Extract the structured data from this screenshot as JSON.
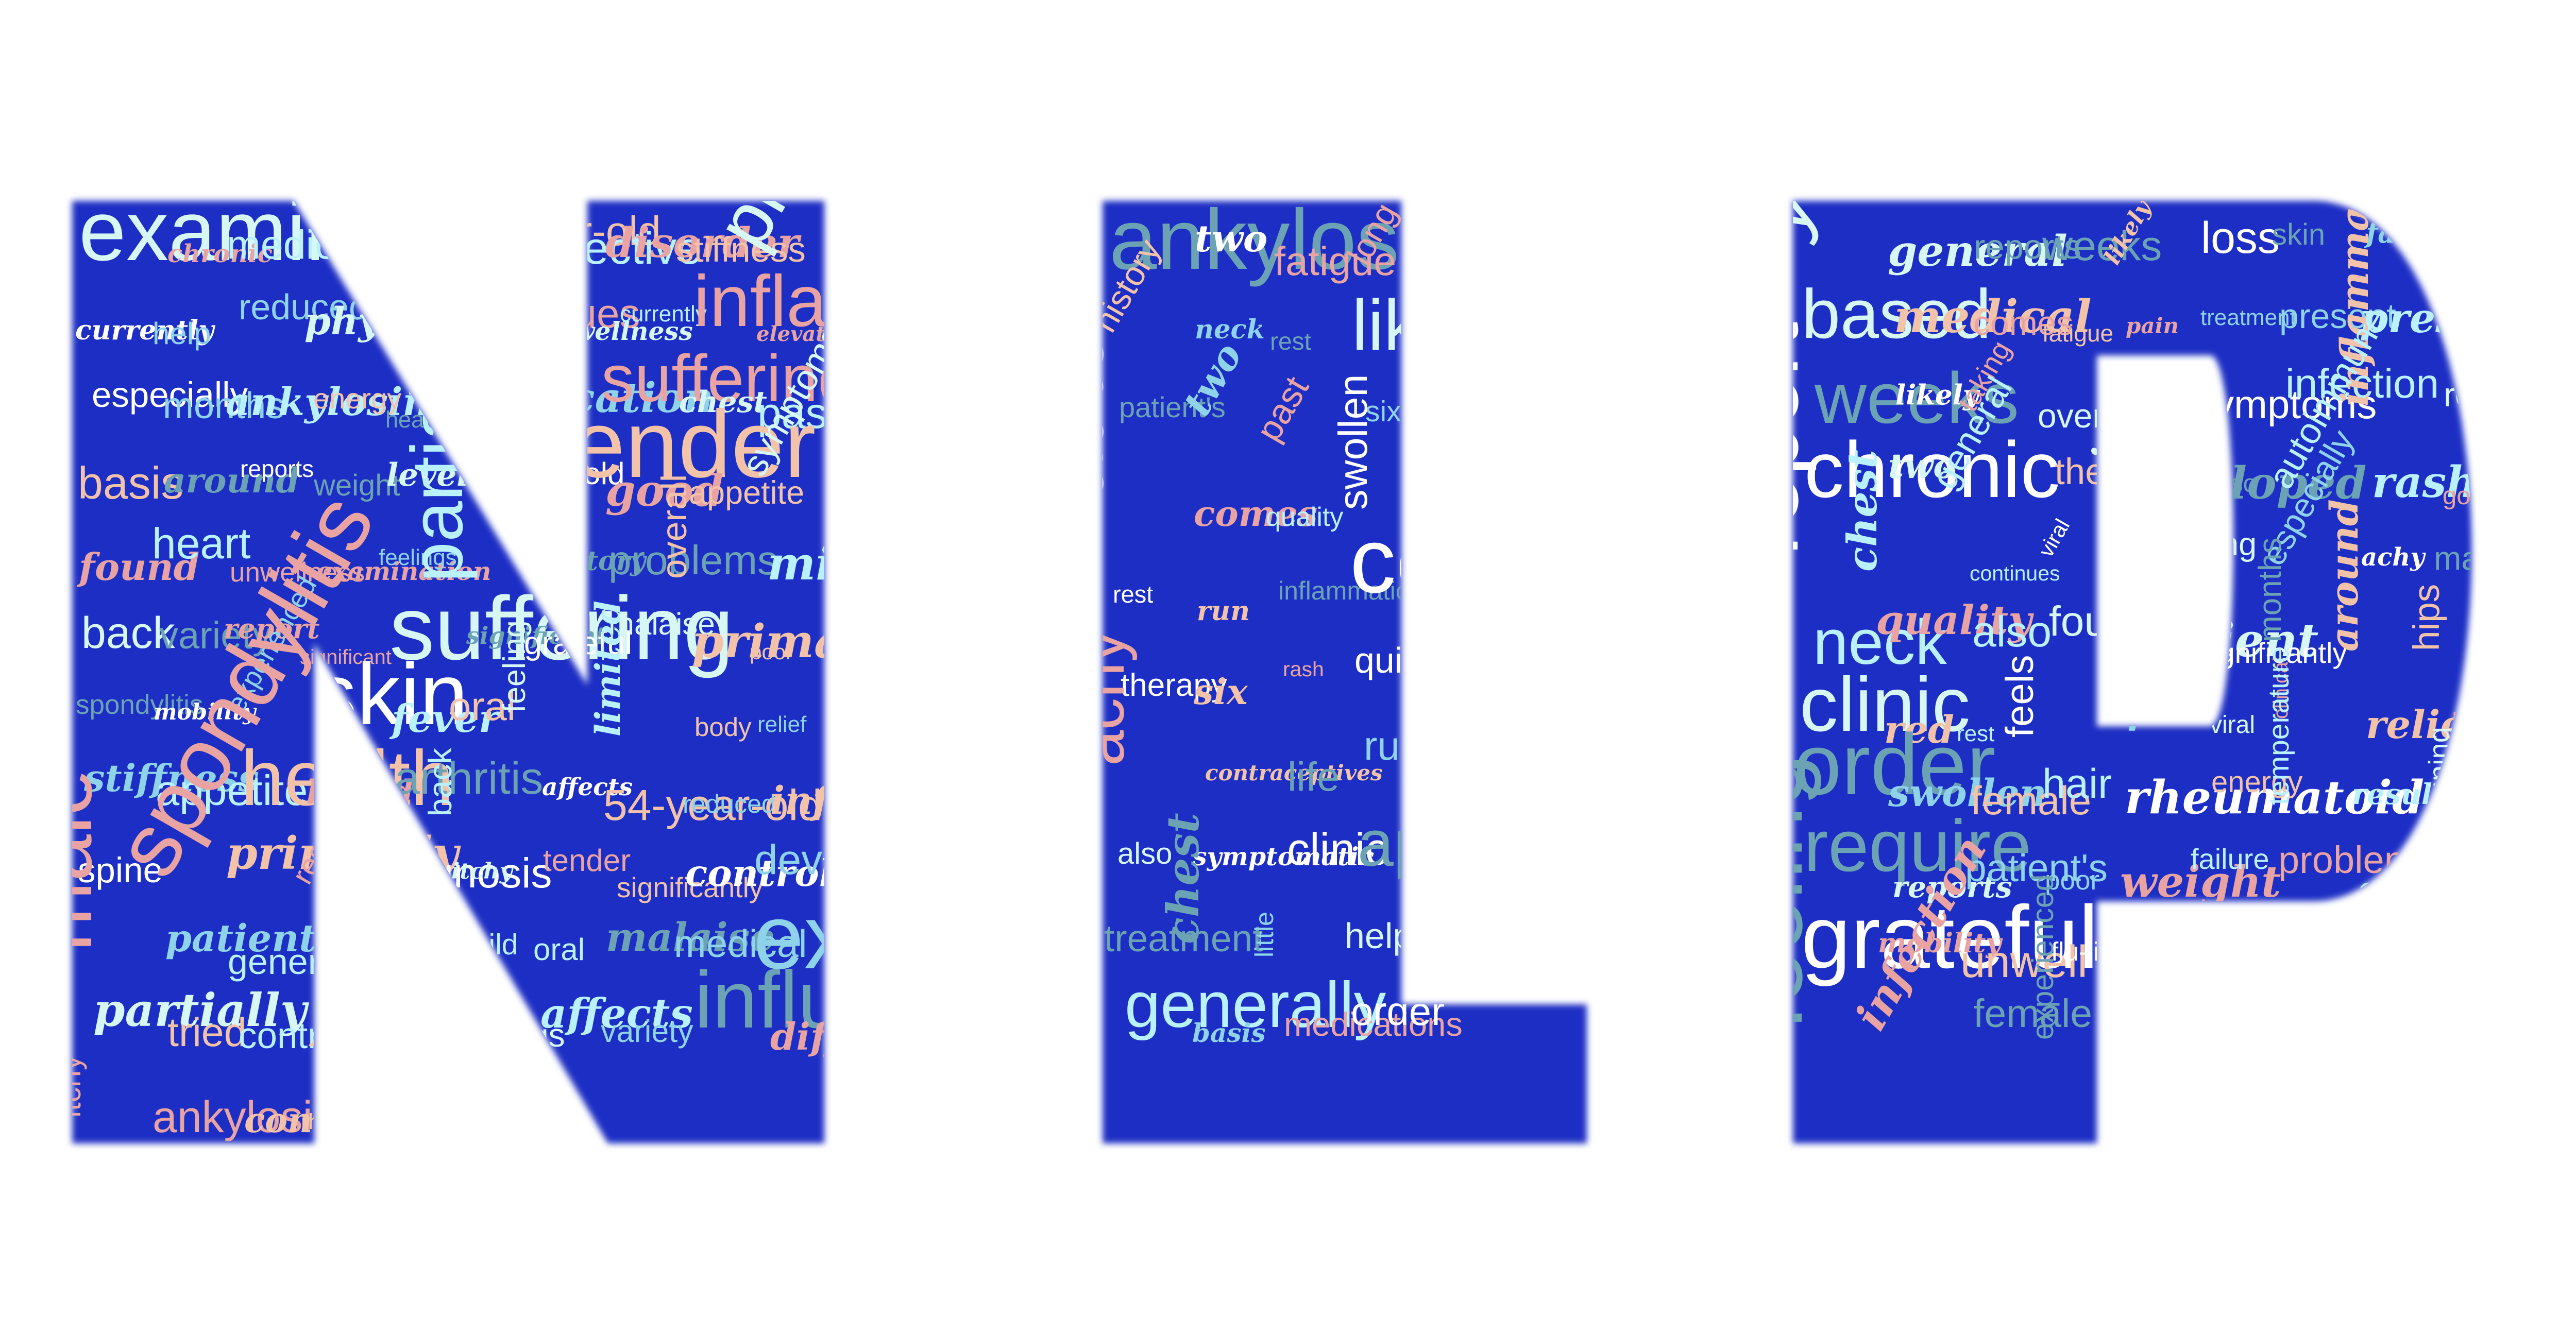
{
  "palette": {
    "background": "#ffffff",
    "letter_fill": "#1a2fc4",
    "word_colors": [
      "#ffffff",
      "#b9f1ff",
      "#f3c3a9",
      "#8fd3ea",
      "#6ca3b4",
      "#e9a3a3",
      "#d7f7f5"
    ]
  },
  "letters": [
    {
      "name": "N",
      "words": [
        "examination",
        "chronic",
        "medications",
        "health",
        "history",
        "38-year-old",
        "effective",
        "disorder",
        "stiffness",
        "physical",
        "currently",
        "help",
        "reduced",
        "physical",
        "patient",
        "continues",
        "unwellness",
        "currently",
        "inflammatory",
        "elevated",
        "especially",
        "months",
        "ankylosing",
        "energy",
        "healthy",
        "medication",
        "symptoms",
        "suffering",
        "chest",
        "past",
        "basis",
        "around",
        "reports",
        "weight",
        "levels",
        "54-year-old",
        "tender",
        "good",
        "appetite",
        "symptoms",
        "found",
        "heart",
        "unwellness",
        "examination",
        "feelings",
        "partially",
        "history",
        "problems",
        "overall",
        "mild",
        "back",
        "variety",
        "report",
        "significant",
        "suffering",
        "significant",
        "grateful",
        "malaise",
        "primarily",
        "poor",
        "spondylitis",
        "mobility",
        "experienced",
        "skin",
        "fever",
        "oral",
        "feeling",
        "limited",
        "body",
        "relief",
        "stiffness",
        "appetite",
        "health",
        "based",
        "arthritis",
        "back",
        "affects",
        "54-year-old",
        "reduced",
        "inflammation",
        "spine",
        "spondylitis",
        "primarily",
        "result",
        "diagnosis",
        "itchy",
        "tender",
        "significantly",
        "control",
        "developed",
        "male",
        "patient",
        "generally",
        "gain",
        "feels",
        "mild",
        "oral",
        "malaise",
        "medical",
        "exercise",
        "partially",
        "tried",
        "contraceptives",
        "fever",
        "hair",
        "feelings",
        "affects",
        "variety",
        "influenza",
        "diffuse",
        "itchy",
        "ankylosing",
        "control",
        "rheumatoid"
      ]
    },
    {
      "name": "I",
      "words": [
        "ankylosing",
        "two",
        "fatigue",
        "long",
        "temperature",
        "red",
        "history",
        "neck",
        "rest",
        "likely",
        "loss",
        "hips",
        "patient's",
        "two",
        "past",
        "six",
        "tried",
        "exercise",
        "autoimmune",
        "comes",
        "quality",
        "swollen",
        "years",
        "limited",
        "rest",
        "run",
        "inflammation",
        "control",
        "elevated",
        "arthritis",
        "therapy",
        "six",
        "rash",
        "quite",
        "examination",
        "life",
        "achy",
        "contraceptives",
        "life",
        "run",
        "recover",
        "unwell",
        "also",
        "symptomatic",
        "clinic",
        "appetite",
        "heart",
        "failure",
        "treatment",
        "chest",
        "little",
        "help",
        "spine",
        "quite",
        "generally",
        "basis",
        "medications",
        "order"
      ]
    },
    {
      "name": "P",
      "words": [
        "years",
        "general",
        "reports",
        "weeks",
        "likely",
        "loss",
        "skin",
        "fatigue",
        "generally",
        "based",
        "medical",
        "comes",
        "fatigue",
        "pain",
        "treatment",
        "present",
        "present",
        "little",
        "weeks",
        "likely",
        "taking",
        "overall",
        "recover",
        "symptoms",
        "infection",
        "inflammatory",
        "regular",
        "chronic",
        "two",
        "general",
        "therapy",
        "developed",
        "torso",
        "autoimmune",
        "rash",
        "good",
        "report",
        "chest",
        "continues",
        "viral",
        "require",
        "long",
        "especially",
        "achy",
        "male",
        "neck",
        "quality",
        "also",
        "found",
        "patient",
        "significantly",
        "months",
        "around",
        "hips",
        "clinic",
        "red",
        "rest",
        "feels",
        "pain",
        "viral",
        "clinical",
        "relief",
        "regular",
        "order",
        "swollen",
        "female",
        "hair",
        "rheumatoid",
        "energy",
        "temperature",
        "result",
        "38-year-old",
        "require",
        "reports",
        "patient's",
        "poor",
        "weight",
        "failure",
        "problems",
        "effective",
        "complaining",
        "grateful",
        "mobility",
        "unwell",
        "flu-like",
        "diagnosis",
        "torso",
        "disorder",
        "gain",
        "medication",
        "feeling",
        "infection",
        "female",
        "experienced",
        "diffuse",
        "rash",
        "clinical",
        "influenza",
        "symptomatic"
      ]
    }
  ]
}
